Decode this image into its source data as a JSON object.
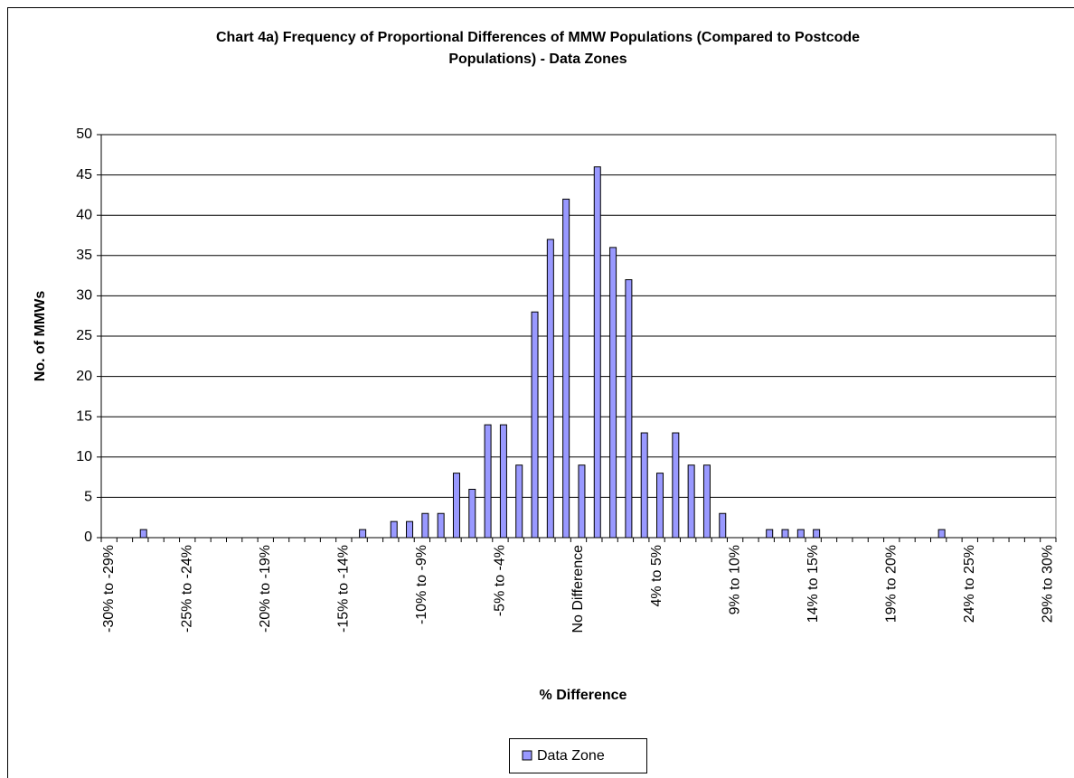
{
  "chart_data": {
    "type": "bar",
    "title": "Chart 4a) Frequency of Proportional Differences of MMW Populations (Compared to Postcode Populations) - Data Zones",
    "x_label": "% Difference",
    "y_label": "No. of MMWs",
    "categories": [
      "-30% to -29%",
      null,
      null,
      null,
      null,
      "-25% to -24%",
      null,
      null,
      null,
      null,
      "-20% to -19%",
      null,
      null,
      null,
      null,
      "-15% to -14%",
      null,
      null,
      null,
      null,
      "-10% to -9%",
      null,
      null,
      null,
      null,
      "-5% to -4%",
      null,
      null,
      null,
      null,
      "No Difference",
      null,
      null,
      null,
      null,
      "4% to 5%",
      null,
      null,
      null,
      null,
      "9% to 10%",
      null,
      null,
      null,
      null,
      "14% to 15%",
      null,
      null,
      null,
      null,
      "19% to 20%",
      null,
      null,
      null,
      null,
      "24% to 25%",
      null,
      null,
      null,
      null,
      "29% to 30%"
    ],
    "series": [
      {
        "name": "Data Zone",
        "color": "#9999ff",
        "values": [
          0,
          0,
          1,
          0,
          0,
          0,
          0,
          0,
          0,
          0,
          0,
          0,
          0,
          0,
          0,
          0,
          1,
          0,
          2,
          2,
          3,
          3,
          8,
          6,
          14,
          14,
          9,
          28,
          37,
          42,
          9,
          46,
          36,
          32,
          13,
          8,
          13,
          9,
          9,
          3,
          0,
          0,
          1,
          1,
          1,
          1,
          0,
          0,
          0,
          0,
          0,
          0,
          0,
          1,
          0,
          0,
          0,
          0,
          0,
          0,
          0
        ]
      }
    ],
    "ylim": [
      0,
      50
    ],
    "yticks": [
      0,
      5,
      10,
      15,
      20,
      25,
      30,
      35,
      40,
      45,
      50
    ],
    "grid": true,
    "legend": "bottom"
  }
}
